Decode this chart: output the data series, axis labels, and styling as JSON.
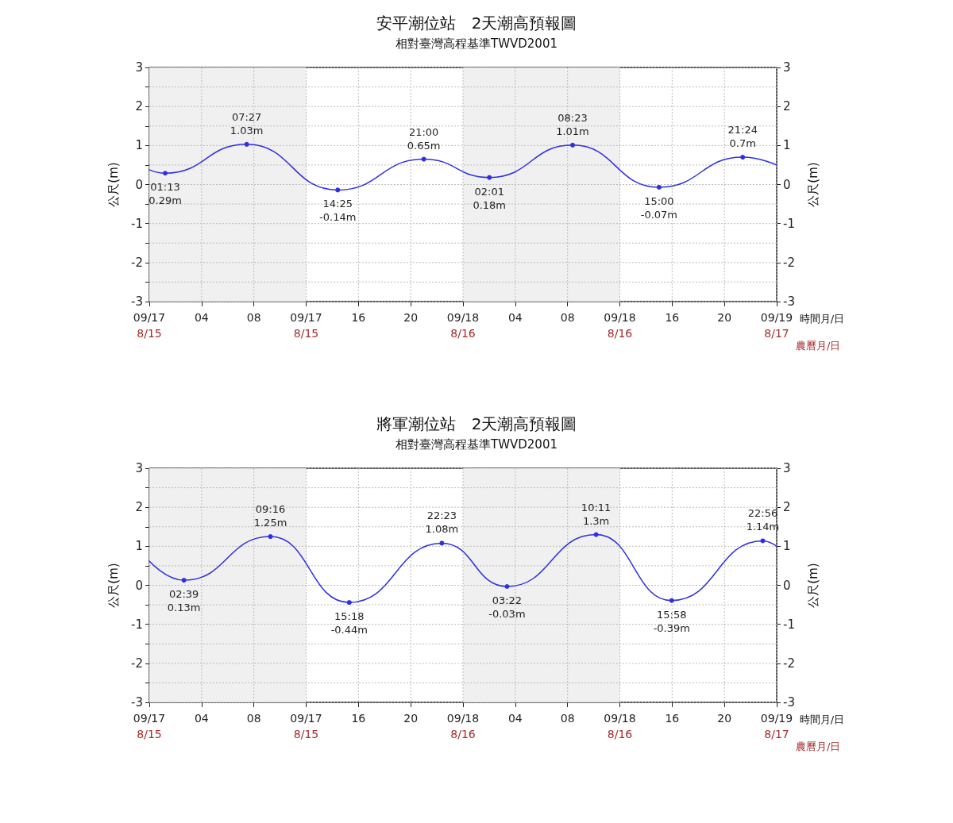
{
  "chart_data": [
    {
      "type": "line",
      "title": "安平潮位站　2天潮高預報圖",
      "subtitle": "相對臺灣高程基準TWVD2001",
      "ylabel": "公尺(m)",
      "y2label": "公尺(m)",
      "xlabel": "時間月/日",
      "annotations": [
        "農曆月/日"
      ],
      "x": [
        "--09-17T00:00",
        "--09-17T01:13",
        "--09-17T07:27",
        "--09-17T14:25",
        "--09-17T21:00",
        "--09-18T02:01",
        "--09-18T08:23",
        "--09-18T15:00",
        "--09-18T21:24",
        "--09-19T00:00"
      ],
      "series": [
        {
          "color": "#3030e0",
          "values": [
            0.38,
            0.29,
            1.03,
            -0.14,
            0.65,
            0.18,
            1.01,
            -0.07,
            0.7,
            0.5
          ],
          "value_labels": [
            null,
            "01:13\n0.29m",
            "07:27\n1.03m",
            "14:25\n-0.14m",
            "21:00\n0.65m",
            "02:01\n0.18m",
            "08:23\n1.01m",
            "15:00\n-0.07m",
            "21:24\n0.7m",
            null
          ]
        }
      ],
      "xlim": [
        "--09-17T00:00",
        "--09-19T00:00"
      ],
      "xticks": [
        {
          "value": "--09-17T00:00",
          "label": "09/17\n8/15"
        },
        {
          "value": "--09-17T04:00",
          "label": "04"
        },
        {
          "value": "--09-17T08:00",
          "label": "08"
        },
        {
          "value": "--09-17T12:00",
          "label": "09/17\n8/15"
        },
        {
          "value": "--09-17T16:00",
          "label": "16"
        },
        {
          "value": "--09-17T20:00",
          "label": "20"
        },
        {
          "value": "--09-18T00:00",
          "label": "09/18\n8/16"
        },
        {
          "value": "--09-18T04:00",
          "label": "04"
        },
        {
          "value": "--09-18T08:00",
          "label": "08"
        },
        {
          "value": "--09-18T12:00",
          "label": "09/18\n8/16"
        },
        {
          "value": "--09-18T16:00",
          "label": "16"
        },
        {
          "value": "--09-18T20:00",
          "label": "20"
        },
        {
          "value": "--09-19T00:00",
          "label": "09/19\n8/17"
        }
      ],
      "ylim": [
        -3,
        3
      ],
      "yticks": [
        -3,
        {
          "value": -2.5,
          "label": null
        },
        -2,
        {
          "value": -1.5,
          "label": null
        },
        -1,
        {
          "value": -0.5,
          "label": null
        },
        0,
        {
          "value": 0.5,
          "label": null
        },
        1,
        {
          "value": 1.5,
          "label": null
        },
        2,
        {
          "value": 2.5,
          "label": null
        },
        3
      ],
      "y2lim": [
        -3,
        3
      ],
      "y2ticks": [
        -3,
        -2,
        -1,
        0,
        1,
        2,
        3
      ],
      "bands": [
        {
          "axis": "x",
          "from": "--09-17T00:00",
          "to": "--09-17T12:00",
          "color": "#f0f0f0"
        },
        {
          "axis": "x",
          "from": "--09-18T00:00",
          "to": "--09-18T12:00",
          "color": "#f0f0f0"
        }
      ],
      "grid": true,
      "marker": "circle",
      "line_style": "solid"
    },
    {
      "type": "line",
      "title": "將軍潮位站　2天潮高預報圖",
      "subtitle": "相對臺灣高程基準TWVD2001",
      "ylabel": "公尺(m)",
      "y2label": "公尺(m)",
      "xlabel": "時間月/日",
      "annotations": [
        "農曆月/日"
      ],
      "x": [
        "--09-17T00:00",
        "--09-17T02:39",
        "--09-17T09:16",
        "--09-17T15:18",
        "--09-17T22:23",
        "--09-18T03:22",
        "--09-18T10:11",
        "--09-18T15:58",
        "--09-18T22:56",
        "--09-19T00:00"
      ],
      "series": [
        {
          "color": "#3030e0",
          "values": [
            0.62,
            0.13,
            1.25,
            -0.44,
            1.08,
            -0.03,
            1.3,
            -0.39,
            1.14,
            1.0
          ],
          "value_labels": [
            null,
            "02:39\n0.13m",
            "09:16\n1.25m",
            "15:18\n-0.44m",
            "22:23\n1.08m",
            "03:22\n-0.03m",
            "10:11\n1.3m",
            "15:58\n-0.39m",
            "22:56\n1.14m",
            null
          ]
        }
      ],
      "xlim": [
        "--09-17T00:00",
        "--09-19T00:00"
      ],
      "xticks": [
        {
          "value": "--09-17T00:00",
          "label": "09/17\n8/15"
        },
        {
          "value": "--09-17T04:00",
          "label": "04"
        },
        {
          "value": "--09-17T08:00",
          "label": "08"
        },
        {
          "value": "--09-17T12:00",
          "label": "09/17\n8/15"
        },
        {
          "value": "--09-17T16:00",
          "label": "16"
        },
        {
          "value": "--09-17T20:00",
          "label": "20"
        },
        {
          "value": "--09-18T00:00",
          "label": "09/18\n8/16"
        },
        {
          "value": "--09-18T04:00",
          "label": "04"
        },
        {
          "value": "--09-18T08:00",
          "label": "08"
        },
        {
          "value": "--09-18T12:00",
          "label": "09/18\n8/16"
        },
        {
          "value": "--09-18T16:00",
          "label": "16"
        },
        {
          "value": "--09-18T20:00",
          "label": "20"
        },
        {
          "value": "--09-19T00:00",
          "label": "09/19\n8/17"
        }
      ],
      "ylim": [
        -3,
        3
      ],
      "yticks": [
        -3,
        {
          "value": -2.5,
          "label": null
        },
        -2,
        {
          "value": -1.5,
          "label": null
        },
        -1,
        {
          "value": -0.5,
          "label": null
        },
        0,
        {
          "value": 0.5,
          "label": null
        },
        1,
        {
          "value": 1.5,
          "label": null
        },
        2,
        {
          "value": 2.5,
          "label": null
        },
        3
      ],
      "y2lim": [
        -3,
        3
      ],
      "y2ticks": [
        -3,
        -2,
        -1,
        0,
        1,
        2,
        3
      ],
      "bands": [
        {
          "axis": "x",
          "from": "--09-17T00:00",
          "to": "--09-17T12:00",
          "color": "#f0f0f0"
        },
        {
          "axis": "x",
          "from": "--09-18T00:00",
          "to": "--09-18T12:00",
          "color": "#f0f0f0"
        }
      ],
      "grid": true,
      "marker": "circle",
      "line_style": "solid"
    }
  ]
}
